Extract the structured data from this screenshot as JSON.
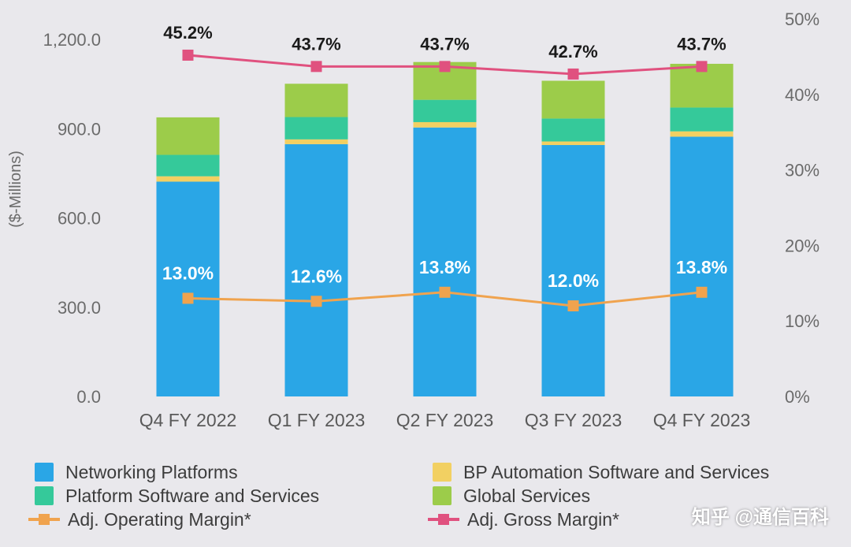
{
  "chart_data": {
    "type": "bar",
    "stacked": true,
    "categories": [
      "Q4 FY 2022",
      "Q1 FY 2023",
      "Q2 FY 2023",
      "Q3 FY 2023",
      "Q4 FY 2023"
    ],
    "ylabel": "($-Millions)",
    "ylim": [
      0,
      1200
    ],
    "yticks": [
      "0.0",
      "300.0",
      "600.0",
      "900.0",
      "1,200.0"
    ],
    "y2lim": [
      0,
      50
    ],
    "y2ticks": [
      "0%",
      "10%",
      "20%",
      "30%",
      "40%",
      "50%"
    ],
    "series": [
      {
        "name": "Networking Platforms",
        "color": "#2aa6e6",
        "values": [
          722,
          848,
          904,
          845,
          873
        ]
      },
      {
        "name": "BP Automation Software and Services",
        "color": "#f2d062",
        "values": [
          18,
          16,
          18,
          12,
          18
        ]
      },
      {
        "name": "Platform Software and Services",
        "color": "#35c99a",
        "values": [
          72,
          75,
          75,
          77,
          80
        ]
      },
      {
        "name": "Global Services",
        "color": "#9ccc4a",
        "values": [
          126,
          112,
          127,
          127,
          147
        ]
      }
    ],
    "lines": [
      {
        "name": "Adj. Gross Margin*",
        "color": "#e0517f",
        "axis": "right",
        "values": [
          45.2,
          43.7,
          43.7,
          42.7,
          43.7
        ],
        "labels": [
          "45.2%",
          "43.7%",
          "43.7%",
          "42.7%",
          "43.7%"
        ]
      },
      {
        "name": "Adj. Operating Margin*",
        "color": "#f0a34e",
        "axis": "right",
        "values": [
          13.0,
          12.6,
          13.8,
          12.0,
          13.8
        ],
        "labels": [
          "13.0%",
          "12.6%",
          "13.8%",
          "12.0%",
          "13.8%"
        ]
      }
    ],
    "legend": [
      {
        "label": "Networking Platforms",
        "kind": "box",
        "color": "#2aa6e6"
      },
      {
        "label": "BP Automation Software and Services",
        "kind": "box",
        "color": "#f2d062"
      },
      {
        "label": "Platform Software and Services",
        "kind": "box",
        "color": "#35c99a"
      },
      {
        "label": "Global Services",
        "kind": "box",
        "color": "#9ccc4a"
      },
      {
        "label": "Adj. Operating Margin*",
        "kind": "line",
        "color": "#f0a34e"
      },
      {
        "label": "Adj. Gross Margin*",
        "kind": "line",
        "color": "#e0517f"
      }
    ]
  },
  "watermark": "知乎 @通信百科"
}
